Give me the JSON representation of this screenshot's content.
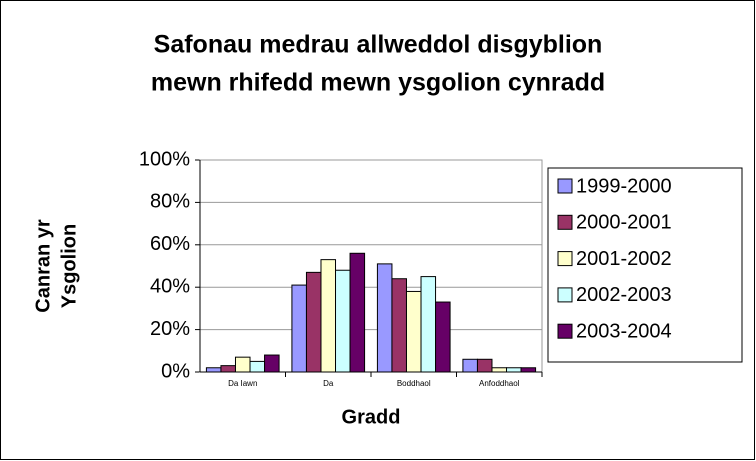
{
  "chart_data": {
    "type": "bar",
    "title": [
      "Safonau medrau allweddol disgyblion",
      "mewn rhifedd mewn ysgolion cynradd"
    ],
    "y_label": [
      "Canran yr",
      "Ysgolion"
    ],
    "x_label": "Gradd",
    "categories": [
      "Da Iawn",
      "Da",
      "Boddhaol",
      "Anfoddhaol"
    ],
    "series": [
      {
        "name": "1999-2000",
        "color": "#9999ff",
        "values": [
          2,
          41,
          51,
          6
        ]
      },
      {
        "name": "2000-2001",
        "color": "#993366",
        "values": [
          3,
          47,
          44,
          6
        ]
      },
      {
        "name": "2001-2002",
        "color": "#ffffcc",
        "values": [
          7,
          53,
          38,
          2
        ]
      },
      {
        "name": "2002-2003",
        "color": "#ccffff",
        "values": [
          5,
          48,
          45,
          2
        ]
      },
      {
        "name": "2003-2004",
        "color": "#660066",
        "values": [
          8,
          56,
          33,
          2
        ]
      }
    ],
    "ylim": [
      0,
      100
    ],
    "yticks": [
      {
        "value": 0,
        "label": "0%"
      },
      {
        "value": 20,
        "label": "20%"
      },
      {
        "value": 40,
        "label": "40%"
      },
      {
        "value": 60,
        "label": "60%"
      },
      {
        "value": 80,
        "label": "80%"
      },
      {
        "value": 100,
        "label": "100%"
      }
    ],
    "grid": true,
    "legend": "right"
  }
}
